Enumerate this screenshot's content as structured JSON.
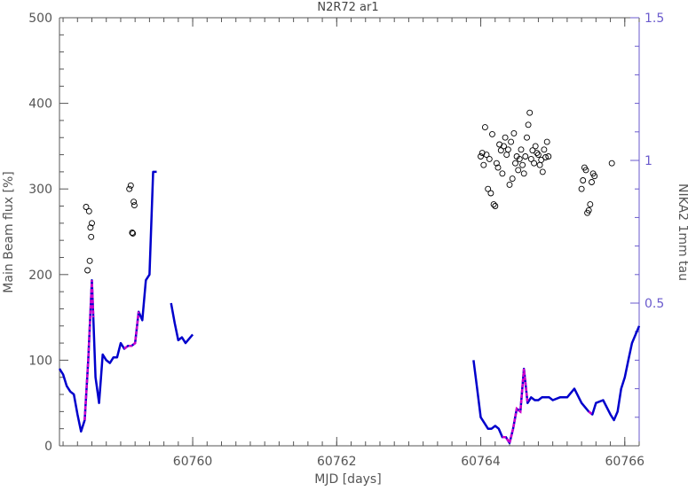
{
  "chart_data": {
    "type": "line",
    "title": "N2R72 ar1",
    "xlabel": "MJD [days]",
    "ylabel": "Main Beam flux [%]",
    "y2label": "NIKA2 1mm tau",
    "xlim": [
      60758.15,
      60766.2
    ],
    "ylim": [
      0,
      500
    ],
    "y2lim": [
      0.0,
      1.5
    ],
    "xticks": [
      60760,
      60762,
      60764,
      60766
    ],
    "yticks": [
      0,
      100,
      200,
      300,
      400,
      500
    ],
    "y2ticks": [
      0.5,
      1,
      1.5
    ],
    "grid": false,
    "colors": {
      "axis": "#555555",
      "right_axis": "#6a5acd",
      "tau_line": "#0000cc",
      "tau_highlight": "#cc00cc",
      "flux_points": "#000000"
    },
    "series": [
      {
        "marker": "open-circle",
        "axis": "left",
        "x": [
          60758.52,
          60758.54,
          60758.56,
          60758.57,
          60758.58,
          60758.59,
          60758.6,
          60759.12,
          60759.14,
          60759.16,
          60759.17,
          60759.18,
          60759.19,
          60764.0,
          60764.02,
          60764.04,
          60764.06,
          60764.08,
          60764.1,
          60764.12,
          60764.14,
          60764.16,
          60764.18,
          60764.2,
          60764.22,
          60764.24,
          60764.26,
          60764.28,
          60764.3,
          60764.32,
          60764.34,
          60764.36,
          60764.38,
          60764.4,
          60764.42,
          60764.44,
          60764.46,
          60764.48,
          60764.5,
          60764.52,
          60764.54,
          60764.56,
          60764.58,
          60764.6,
          60764.62,
          60764.64,
          60764.66,
          60764.68,
          60764.7,
          60764.72,
          60764.74,
          60764.76,
          60764.78,
          60764.8,
          60764.82,
          60764.84,
          60764.86,
          60764.88,
          60764.9,
          60764.92,
          60764.94,
          60765.4,
          60765.42,
          60765.44,
          60765.46,
          60765.48,
          60765.5,
          60765.52,
          60765.54,
          60765.56,
          60765.58,
          60765.82
        ],
        "y": [
          279,
          205,
          274,
          216,
          255,
          244,
          260,
          300,
          304,
          249,
          248,
          285,
          281,
          338,
          342,
          328,
          372,
          340,
          300,
          335,
          295,
          364,
          282,
          280,
          330,
          325,
          352,
          345,
          318,
          350,
          360,
          340,
          346,
          305,
          355,
          312,
          365,
          330,
          338,
          322,
          335,
          346,
          328,
          318,
          338,
          360,
          375,
          389,
          335,
          345,
          330,
          350,
          342,
          340,
          328,
          334,
          320,
          346,
          337,
          355,
          338,
          300,
          310,
          325,
          322,
          272,
          275,
          282,
          308,
          318,
          315,
          330
        ]
      },
      {
        "name": "tau",
        "axis": "right",
        "x": [
          60758.15,
          60758.2,
          60758.25,
          60758.3,
          60758.35,
          60758.4,
          60758.45,
          60758.5,
          60758.55,
          60758.6,
          60758.62,
          60758.65,
          60758.7,
          60758.75,
          60758.8,
          60758.85,
          60758.9,
          60758.95,
          60759.0,
          60759.05,
          60759.1,
          60759.15,
          60759.2,
          60759.25,
          60759.3,
          60759.35,
          60759.4,
          60759.45,
          60759.5,
          60759.7,
          60759.75,
          60759.8,
          60759.85,
          60759.9,
          60760.0,
          60763.9,
          60763.95,
          60764.0,
          60764.05,
          60764.1,
          60764.15,
          60764.2,
          60764.25,
          60764.3,
          60764.35,
          60764.4,
          60764.45,
          60764.5,
          60764.55,
          60764.6,
          60764.65,
          60764.7,
          60764.75,
          60764.8,
          60764.85,
          60764.9,
          60764.95,
          60765.0,
          60765.1,
          60765.2,
          60765.3,
          60765.4,
          60765.5,
          60765.55,
          60765.6,
          60765.7,
          60765.8,
          60765.85,
          60765.9,
          60765.95,
          60766.0,
          60766.05,
          60766.1,
          60766.2
        ],
        "values": [
          0.27,
          0.25,
          0.21,
          0.19,
          0.18,
          0.11,
          0.05,
          0.09,
          0.3,
          0.58,
          0.45,
          0.24,
          0.15,
          0.32,
          0.3,
          0.29,
          0.31,
          0.31,
          0.36,
          0.34,
          0.35,
          0.35,
          0.36,
          0.47,
          0.44,
          0.58,
          0.6,
          0.96,
          0.96,
          0.5,
          0.43,
          0.37,
          0.38,
          0.36,
          0.39,
          0.3,
          0.2,
          0.1,
          0.08,
          0.06,
          0.06,
          0.07,
          0.06,
          0.03,
          0.03,
          0.01,
          0.06,
          0.13,
          0.12,
          0.27,
          0.15,
          0.17,
          0.16,
          0.16,
          0.17,
          0.17,
          0.17,
          0.16,
          0.17,
          0.17,
          0.2,
          0.15,
          0.12,
          0.11,
          0.15,
          0.16,
          0.11,
          0.09,
          0.12,
          0.2,
          0.24,
          0.3,
          0.36,
          0.42
        ]
      }
    ]
  }
}
